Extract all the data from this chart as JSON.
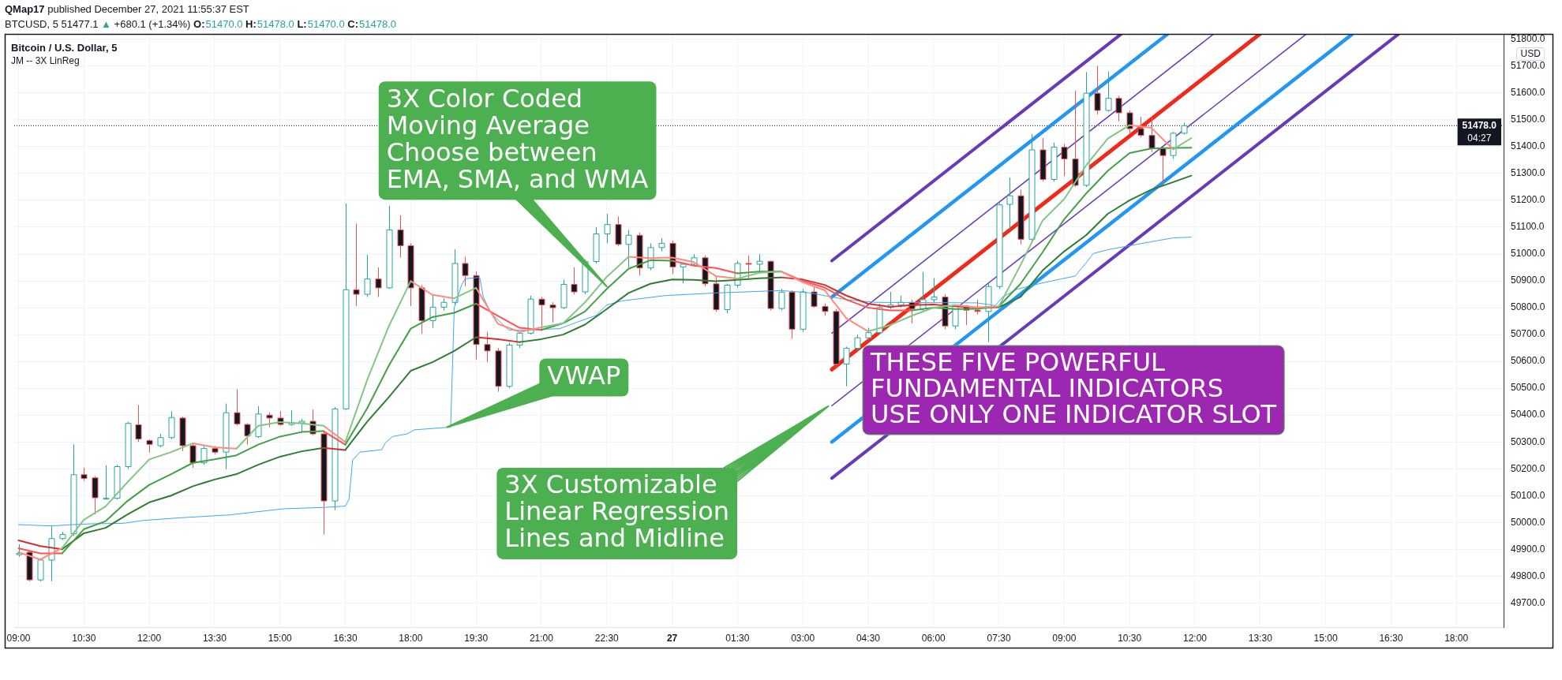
{
  "chart_data": {
    "type": "candlestick",
    "title": "Bitcoin / U.S. Dollar, 5",
    "subtitle": "JM -- 3X LinReg",
    "ylabel": "USD",
    "x": [
      "2021-12-26T09:00",
      "2021-12-26T09:15",
      "2021-12-26T09:30",
      "2021-12-26T09:45",
      "2021-12-26T10:00",
      "2021-12-26T10:15",
      "2021-12-26T10:30",
      "2021-12-26T10:45",
      "2021-12-26T11:00",
      "2021-12-26T11:15",
      "2021-12-26T11:30",
      "2021-12-26T11:45",
      "2021-12-26T12:00",
      "2021-12-26T12:15",
      "2021-12-26T12:30",
      "2021-12-26T12:45",
      "2021-12-26T13:00",
      "2021-12-26T13:15",
      "2021-12-26T13:30",
      "2021-12-26T13:45",
      "2021-12-26T14:00",
      "2021-12-26T14:15",
      "2021-12-26T14:30",
      "2021-12-26T14:45",
      "2021-12-26T15:00",
      "2021-12-26T15:15",
      "2021-12-26T15:30",
      "2021-12-26T15:45",
      "2021-12-26T16:00",
      "2021-12-26T16:15",
      "2021-12-26T16:30",
      "2021-12-26T16:45",
      "2021-12-26T17:00",
      "2021-12-26T17:15",
      "2021-12-26T17:30",
      "2021-12-26T17:45",
      "2021-12-26T18:00",
      "2021-12-26T18:15",
      "2021-12-26T18:30",
      "2021-12-26T18:45",
      "2021-12-26T19:00",
      "2021-12-26T19:15",
      "2021-12-26T19:30",
      "2021-12-26T19:45",
      "2021-12-26T20:00",
      "2021-12-26T20:15",
      "2021-12-26T20:30",
      "2021-12-26T20:45",
      "2021-12-26T21:00",
      "2021-12-26T21:15",
      "2021-12-26T21:30",
      "2021-12-26T21:45",
      "2021-12-26T22:00",
      "2021-12-26T22:15",
      "2021-12-26T22:30",
      "2021-12-26T22:45",
      "2021-12-26T23:00",
      "2021-12-26T23:15",
      "2021-12-26T23:30",
      "2021-12-26T23:45",
      "2021-12-27T00:00",
      "2021-12-27T00:15",
      "2021-12-27T00:30",
      "2021-12-27T00:45",
      "2021-12-27T01:00",
      "2021-12-27T01:15",
      "2021-12-27T01:30",
      "2021-12-27T01:45",
      "2021-12-27T02:00",
      "2021-12-27T02:15",
      "2021-12-27T02:30",
      "2021-12-27T02:45",
      "2021-12-27T03:00",
      "2021-12-27T03:15",
      "2021-12-27T03:30",
      "2021-12-27T03:45",
      "2021-12-27T04:00",
      "2021-12-27T04:15",
      "2021-12-27T04:30",
      "2021-12-27T04:45",
      "2021-12-27T05:00",
      "2021-12-27T05:15",
      "2021-12-27T05:30",
      "2021-12-27T05:45",
      "2021-12-27T06:00",
      "2021-12-27T06:15",
      "2021-12-27T06:30",
      "2021-12-27T06:45",
      "2021-12-27T07:00",
      "2021-12-27T07:15",
      "2021-12-27T07:30",
      "2021-12-27T07:45",
      "2021-12-27T08:00",
      "2021-12-27T08:15",
      "2021-12-27T08:30",
      "2021-12-27T08:45",
      "2021-12-27T09:00",
      "2021-12-27T09:15",
      "2021-12-27T09:30",
      "2021-12-27T09:45",
      "2021-12-27T10:00",
      "2021-12-27T10:15",
      "2021-12-27T10:30",
      "2021-12-27T10:45",
      "2021-12-27T11:00",
      "2021-12-27T11:15",
      "2021-12-27T11:30",
      "2021-12-27T11:45"
    ],
    "ohlc": [
      [
        49880,
        49919,
        49872,
        49885
      ],
      [
        49889,
        49895,
        49781,
        49786
      ],
      [
        49786,
        49865,
        49780,
        49860
      ],
      [
        49860,
        49989,
        49781,
        49940
      ],
      [
        49940,
        49965,
        49935,
        49955
      ],
      [
        49958,
        50291,
        49950,
        50178
      ],
      [
        50178,
        50203,
        50155,
        50164
      ],
      [
        50166,
        50172,
        50030,
        50092
      ],
      [
        50090,
        50213,
        50085,
        50090
      ],
      [
        50090,
        50215,
        50085,
        50208
      ],
      [
        50208,
        50375,
        50200,
        50369
      ],
      [
        50364,
        50438,
        50300,
        50311
      ],
      [
        50305,
        50310,
        50260,
        50291
      ],
      [
        50286,
        50330,
        50280,
        50316
      ],
      [
        50316,
        50414,
        50310,
        50391
      ],
      [
        50389,
        50395,
        50266,
        50286
      ],
      [
        50286,
        50295,
        50203,
        50222
      ],
      [
        50222,
        50290,
        50215,
        50276
      ],
      [
        50276,
        50285,
        50255,
        50262
      ],
      [
        50262,
        50443,
        50198,
        50409
      ],
      [
        50409,
        50497,
        50360,
        50367
      ],
      [
        50365,
        50370,
        50290,
        50322
      ],
      [
        50320,
        50433,
        50315,
        50404
      ],
      [
        50400,
        50410,
        50355,
        50389
      ],
      [
        50389,
        50415,
        50360,
        50365
      ],
      [
        50365,
        50418,
        50360,
        50371
      ],
      [
        50371,
        50385,
        50335,
        50377
      ],
      [
        50377,
        50421,
        50325,
        50330
      ],
      [
        50330,
        50335,
        49955,
        50080
      ],
      [
        50080,
        50430,
        50046,
        50423
      ],
      [
        50423,
        51188,
        50420,
        50867
      ],
      [
        50867,
        51114,
        50806,
        50850
      ],
      [
        50850,
        50997,
        50840,
        50907
      ],
      [
        50907,
        50950,
        50840,
        50874
      ],
      [
        50874,
        51180,
        50870,
        51090
      ],
      [
        51090,
        51144,
        50987,
        51031
      ],
      [
        51031,
        51040,
        50806,
        50874
      ],
      [
        50874,
        50885,
        50703,
        50752
      ],
      [
        50752,
        50850,
        50725,
        50802
      ],
      [
        50802,
        50835,
        50790,
        50820
      ],
      [
        50820,
        51018,
        50810,
        50965
      ],
      [
        50965,
        50990,
        50880,
        50920
      ],
      [
        50920,
        50935,
        50607,
        50663
      ],
      [
        50663,
        50710,
        50597,
        50639
      ],
      [
        50639,
        50650,
        50487,
        50507
      ],
      [
        50507,
        50670,
        50500,
        50661
      ],
      [
        50661,
        50712,
        50650,
        50705
      ],
      [
        50705,
        50845,
        50700,
        50832
      ],
      [
        50832,
        50840,
        50720,
        50810
      ],
      [
        50810,
        50820,
        50745,
        50800
      ],
      [
        50800,
        50905,
        50795,
        50887
      ],
      [
        50887,
        50950,
        50850,
        50859
      ],
      [
        50859,
        50980,
        50850,
        50972
      ],
      [
        50972,
        51100,
        50965,
        51075
      ],
      [
        51075,
        51150,
        51040,
        51110
      ],
      [
        51110,
        51140,
        51030,
        51036
      ],
      [
        51036,
        51090,
        50950,
        51070
      ],
      [
        51070,
        51080,
        50920,
        50948
      ],
      [
        50948,
        51040,
        50940,
        51024
      ],
      [
        51024,
        51060,
        51010,
        51040
      ],
      [
        51040,
        51050,
        50925,
        50952
      ],
      [
        50952,
        50965,
        50890,
        50962
      ],
      [
        50962,
        51000,
        50955,
        50986
      ],
      [
        50986,
        50995,
        50880,
        50889
      ],
      [
        50889,
        50915,
        50785,
        50793
      ],
      [
        50793,
        50890,
        50780,
        50884
      ],
      [
        50884,
        50975,
        50875,
        50965
      ],
      [
        50965,
        50995,
        50910,
        50962
      ],
      [
        50962,
        51000,
        50930,
        50973
      ],
      [
        50973,
        50975,
        50790,
        50797
      ],
      [
        50797,
        50870,
        50790,
        50858
      ],
      [
        50858,
        50865,
        50685,
        50720
      ],
      [
        50720,
        50870,
        50710,
        50859
      ],
      [
        50859,
        50880,
        50800,
        50805
      ],
      [
        50805,
        50815,
        50770,
        50786
      ],
      [
        50786,
        50795,
        50580,
        50590
      ],
      [
        50590,
        50655,
        50507,
        50649
      ],
      [
        50649,
        50700,
        50640,
        50688
      ],
      [
        50688,
        50725,
        50680,
        50707
      ],
      [
        50707,
        50815,
        50700,
        50801
      ],
      [
        50801,
        50859,
        50795,
        50810
      ],
      [
        50810,
        50845,
        50800,
        50820
      ],
      [
        50820,
        50830,
        50742,
        50796
      ],
      [
        50796,
        50933,
        50785,
        50830
      ],
      [
        50830,
        50910,
        50820,
        50840
      ],
      [
        50840,
        50850,
        50720,
        50732
      ],
      [
        50732,
        50806,
        50720,
        50806
      ],
      [
        50806,
        50810,
        50735,
        50791
      ],
      [
        50791,
        50830,
        50775,
        50786
      ],
      [
        50786,
        50890,
        50672,
        50879
      ],
      [
        50879,
        51190,
        50870,
        51183
      ],
      [
        51185,
        51285,
        51090,
        51217
      ],
      [
        51217,
        51240,
        51036,
        51055
      ],
      [
        51055,
        51447,
        51050,
        51388
      ],
      [
        51388,
        51432,
        51270,
        51278
      ],
      [
        51278,
        51415,
        51270,
        51398
      ],
      [
        51398,
        51410,
        51290,
        51354
      ],
      [
        51354,
        51609,
        51250,
        51256
      ],
      [
        51256,
        51678,
        51250,
        51599
      ],
      [
        51599,
        51701,
        51520,
        51535
      ],
      [
        51535,
        51680,
        51530,
        51580
      ],
      [
        51580,
        51590,
        51495,
        51526
      ],
      [
        51526,
        51535,
        51450,
        51467
      ],
      [
        51467,
        51511,
        51435,
        51442
      ],
      [
        51442,
        51512,
        51380,
        51393
      ],
      [
        51393,
        51400,
        51253,
        51367
      ],
      [
        51367,
        51455,
        51355,
        51450
      ],
      [
        51450,
        51490,
        51445,
        51478
      ]
    ],
    "colors": [
      "#26a69a",
      "#ef5350",
      "#26a69a",
      "#26a69a",
      "#26a69a",
      "#26a69a",
      "#ef5350",
      "#ef5350",
      "#26a69a",
      "#26a69a",
      "#26a69a",
      "#ef5350",
      "#ef5350",
      "#26a69a",
      "#26a69a",
      "#ef5350",
      "#ef5350",
      "#26a69a",
      "#ef5350",
      "#26a69a",
      "#ef5350",
      "#ef5350",
      "#26a69a",
      "#ef5350",
      "#ef5350",
      "#26a69a",
      "#26a69a",
      "#ef5350",
      "#ef5350",
      "#26a69a",
      "#26a69a",
      "#ef5350",
      "#26a69a",
      "#ef5350",
      "#26a69a",
      "#ef5350",
      "#ef5350",
      "#ef5350",
      "#26a69a",
      "#26a69a",
      "#26a69a",
      "#ef5350",
      "#ef5350",
      "#ef5350",
      "#ef5350",
      "#26a69a",
      "#26a69a",
      "#26a69a",
      "#ef5350",
      "#ef5350",
      "#26a69a",
      "#ef5350",
      "#26a69a",
      "#26a69a",
      "#26a69a",
      "#ef5350",
      "#26a69a",
      "#ef5350",
      "#26a69a",
      "#26a69a",
      "#ef5350",
      "#26a69a",
      "#26a69a",
      "#ef5350",
      "#ef5350",
      "#26a69a",
      "#26a69a",
      "#ef5350",
      "#26a69a",
      "#ef5350",
      "#26a69a",
      "#ef5350",
      "#26a69a",
      "#ef5350",
      "#ef5350",
      "#ef5350",
      "#26a69a",
      "#26a69a",
      "#26a69a",
      "#26a69a",
      "#26a69a",
      "#26a69a",
      "#ef5350",
      "#26a69a",
      "#26a69a",
      "#ef5350",
      "#26a69a",
      "#ef5350",
      "#ef5350",
      "#26a69a",
      "#26a69a",
      "#26a69a",
      "#ef5350",
      "#26a69a",
      "#ef5350",
      "#26a69a",
      "#ef5350",
      "#ef5350",
      "#26a69a",
      "#ef5350",
      "#26a69a",
      "#ef5350",
      "#ef5350",
      "#ef5350",
      "#ef5350",
      "#ef5350",
      "#26a69a",
      "#26a69a"
    ],
    "series": [
      {
        "type": "line",
        "color": "#81c784",
        "x": [
          "2021-12-26T10:00",
          "2021-12-26T10:30",
          "2021-12-26T11:00",
          "2021-12-26T11:30",
          "2021-12-26T12:00",
          "2021-12-26T12:30",
          "2021-12-26T13:00",
          "2021-12-26T13:30",
          "2021-12-26T14:00",
          "2021-12-26T14:30",
          "2021-12-26T15:00",
          "2021-12-26T15:30",
          "2021-12-26T16:00",
          "2021-12-26T16:15",
          "2021-12-26T16:30",
          "2021-12-26T17:00",
          "2021-12-26T17:30",
          "2021-12-26T18:00",
          "2021-12-26T18:30",
          "2021-12-26T19:00",
          "2021-12-26T19:30",
          "2021-12-26T20:00",
          "2021-12-26T21:00",
          "2021-12-26T21:30",
          "2021-12-26T22:00",
          "2021-12-26T22:30",
          "2021-12-26T23:00",
          "2021-12-27T00:00",
          "2021-12-27T01:30",
          "2021-12-27T02:00",
          "2021-12-27T02:30",
          "2021-12-27T03:30",
          "2021-12-27T04:30",
          "2021-12-27T05:00",
          "2021-12-27T05:30",
          "2021-12-27T06:00",
          "2021-12-27T06:30",
          "2021-12-27T07:00",
          "2021-12-27T07:30",
          "2021-12-27T08:00",
          "2021-12-27T08:30",
          "2021-12-27T09:00",
          "2021-12-27T09:30",
          "2021-12-27T10:00",
          "2021-12-27T10:30",
          "2021-12-27T11:00",
          "2021-12-27T11:30",
          "2021-12-27T11:55"
        ],
        "values": [
          49905,
          50010,
          50060,
          50150,
          50235,
          50262,
          50295,
          null,
          50275,
          50360,
          50374,
          50369,
          50360,
          null,
          50300,
          50530,
          50732,
          50899,
          null,
          50835,
          50874,
          null,
          50727,
          50742,
          50820,
          50915,
          50990,
          null,
          50908,
          50930,
          50935,
          null,
          50712,
          50735,
          50770,
          50800,
          50810,
          null,
          50805,
          50960,
          51124,
          51205,
          51330,
          51430,
          51480,
          null,
          51390,
          51432
        ]
      },
      {
        "type": "line",
        "color": "#ff8a80",
        "x": [
          "2021-12-26T09:00",
          "2021-12-26T09:30",
          "2021-12-26T10:00",
          "2021-12-26T11:30",
          "2021-12-26T13:00",
          "2021-12-26T13:30",
          "2021-12-26T14:00",
          "2021-12-26T15:00",
          "2021-12-26T16:00",
          "2021-12-26T16:30",
          "2021-12-26T17:00",
          "2021-12-26T18:00",
          "2021-12-26T18:30",
          "2021-12-26T19:00",
          "2021-12-26T19:15",
          "2021-12-26T19:30",
          "2021-12-26T20:00",
          "2021-12-26T20:30",
          "2021-12-26T21:00",
          "2021-12-26T22:00",
          "2021-12-26T23:00",
          "2021-12-26T23:30",
          "2021-12-27T00:00",
          "2021-12-27T00:30",
          "2021-12-27T01:00",
          "2021-12-27T01:30",
          "2021-12-27T02:00",
          "2021-12-27T02:30",
          "2021-12-27T03:00",
          "2021-12-27T03:30",
          "2021-12-27T04:00",
          "2021-12-27T04:30",
          "2021-12-27T05:30",
          "2021-12-27T06:30",
          "2021-12-27T07:00",
          "2021-12-27T07:30",
          "2021-12-27T09:00",
          "2021-12-27T10:30",
          "2021-12-27T11:00",
          "2021-12-27T11:30"
        ],
        "values": [
          49889,
          49862,
          49905,
          null,
          50295,
          50280,
          50275,
          null,
          50360,
          50300,
          null,
          50899,
          50848,
          50835,
          null,
          50874,
          50740,
          50710,
          50727,
          null,
          50990,
          50985,
          50987,
          50970,
          50918,
          50908,
          null,
          50935,
          50895,
          50865,
          50760,
          50712,
          null,
          50810,
          50801,
          50805,
          null,
          51480,
          51470,
          51390
        ]
      },
      {
        "type": "line",
        "color": "#43a047",
        "x": [
          "2021-12-26T10:00",
          "2021-12-26T10:30",
          "2021-12-26T11:00",
          "2021-12-26T11:30",
          "2021-12-26T12:00",
          "2021-12-26T12:30",
          "2021-12-26T13:00",
          "2021-12-26T13:30",
          "2021-12-26T14:00",
          "2021-12-26T14:30",
          "2021-12-26T15:00",
          "2021-12-26T15:30",
          "2021-12-26T16:00",
          "2021-12-26T16:15",
          "2021-12-26T16:30",
          "2021-12-26T17:00",
          "2021-12-26T17:30",
          "2021-12-26T18:00",
          "2021-12-26T18:30",
          "2021-12-26T19:00",
          "2021-12-26T19:30",
          "2021-12-26T20:00",
          "2021-12-26T21:00",
          "2021-12-26T21:30",
          "2021-12-26T22:00",
          "2021-12-26T22:30",
          "2021-12-26T23:00",
          "2021-12-26T23:30",
          "2021-12-27T00:00",
          "2021-12-27T00:30",
          "2021-12-27T01:30",
          "2021-12-27T02:00",
          "2021-12-27T02:30",
          "2021-12-27T03:30",
          "2021-12-27T05:30",
          "2021-12-27T06:00",
          "2021-12-27T06:30",
          "2021-12-27T07:00",
          "2021-12-27T07:30",
          "2021-12-27T08:00",
          "2021-12-27T08:30",
          "2021-12-27T09:00",
          "2021-12-27T09:30",
          "2021-12-27T10:00",
          "2021-12-27T10:30",
          "2021-12-27T11:00",
          "2021-12-27T11:30",
          "2021-12-27T11:55"
        ],
        "values": [
          49885,
          49975,
          50005,
          50080,
          50140,
          50180,
          50222,
          50235,
          50250,
          50290,
          50320,
          50337,
          50340,
          null,
          50290,
          50425,
          50585,
          50722,
          50765,
          50781,
          50815,
          null,
          50717,
          50742,
          50786,
          50870,
          50945,
          50977,
          50975,
          null,
          50928,
          50935,
          50935,
          null,
          50790,
          50800,
          50795,
          50796,
          50805,
          50890,
          51006,
          51130,
          51225,
          51310,
          51376,
          51393,
          51395,
          51396
        ]
      },
      {
        "type": "line",
        "color": "#ff5252",
        "x": [
          "2021-12-26T09:00",
          "2021-12-26T09:30",
          "2021-12-26T10:00",
          "2021-12-26T13:00",
          "2021-12-26T16:00",
          "2021-12-26T16:30",
          "2021-12-26T18:00",
          "2021-12-26T19:30",
          "2021-12-26T20:00",
          "2021-12-26T20:30",
          "2021-12-26T21:00",
          "2021-12-26T22:30",
          "2021-12-27T00:00",
          "2021-12-27T00:30",
          "2021-12-27T01:00",
          "2021-12-27T01:30",
          "2021-12-27T02:00",
          "2021-12-27T02:30",
          "2021-12-27T03:00",
          "2021-12-27T03:30",
          "2021-12-27T04:00",
          "2021-12-27T04:30",
          "2021-12-27T05:00",
          "2021-12-27T05:30"
        ],
        "values": [
          49904,
          49885,
          49885,
          null,
          50340,
          50290,
          null,
          50815,
          50770,
          50725,
          50717,
          null,
          50975,
          50957,
          50948,
          50928,
          null,
          50935,
          50900,
          50875,
          50830,
          50800,
          50790,
          50790
        ]
      },
      {
        "type": "line",
        "color": "#2e7d32",
        "x": [
          "2021-12-26T10:00",
          "2021-12-26T10:30",
          "2021-12-26T11:00",
          "2021-12-26T11:30",
          "2021-12-26T12:00",
          "2021-12-26T12:30",
          "2021-12-26T13:00",
          "2021-12-26T13:30",
          "2021-12-26T14:00",
          "2021-12-26T14:30",
          "2021-12-26T15:00",
          "2021-12-26T15:30",
          "2021-12-26T16:00",
          "2021-12-26T16:15",
          "2021-12-26T16:30",
          "2021-12-26T17:00",
          "2021-12-26T17:30",
          "2021-12-26T18:00",
          "2021-12-26T18:30",
          "2021-12-26T19:00",
          "2021-12-26T19:30",
          "2021-12-26T20:00",
          "2021-12-26T20:30",
          "2021-12-26T21:00",
          "2021-12-26T21:30",
          "2021-12-26T22:00",
          "2021-12-26T22:30",
          "2021-12-26T23:00",
          "2021-12-26T23:30",
          "2021-12-27T00:00",
          "2021-12-27T00:30",
          "2021-12-27T01:00",
          "2021-12-27T01:30",
          "2021-12-27T02:00",
          "2021-12-27T02:30",
          "2021-12-27T05:00",
          "2021-12-27T07:30",
          "2021-12-27T08:00",
          "2021-12-27T08:30",
          "2021-12-27T09:00",
          "2021-12-27T09:30",
          "2021-12-27T10:00",
          "2021-12-27T10:30",
          "2021-12-27T11:00",
          "2021-12-27T11:30",
          "2021-12-27T11:55"
        ],
        "values": [
          49900,
          49960,
          49980,
          50030,
          50075,
          50100,
          50135,
          50160,
          50180,
          50215,
          50245,
          50265,
          50278,
          null,
          50270,
          50375,
          50467,
          50565,
          50597,
          50639,
          50690,
          null,
          50672,
          50683,
          50700,
          50737,
          50795,
          50855,
          50889,
          50905,
          50904,
          50899,
          50904,
          50910,
          50913,
          null,
          50802,
          50840,
          50938,
          51010,
          51070,
          51150,
          51200,
          51240,
          51268,
          51292
        ]
      },
      {
        "type": "line",
        "color": "#d32f2f",
        "x": [
          "2021-12-26T09:00",
          "2021-12-26T09:30",
          "2021-12-26T10:00",
          "2021-12-26T13:00",
          "2021-12-26T16:00",
          "2021-12-26T16:30",
          "2021-12-26T18:00",
          "2021-12-26T19:30",
          "2021-12-26T20:00",
          "2021-12-26T20:30",
          "2021-12-26T23:00",
          "2021-12-27T02:30",
          "2021-12-27T03:00",
          "2021-12-27T03:30",
          "2021-12-27T04:00",
          "2021-12-27T04:30",
          "2021-12-27T05:00",
          "2021-12-27T05:30",
          "2021-12-27T06:00",
          "2021-12-27T06:30",
          "2021-12-27T07:00",
          "2021-12-27T07:30"
        ],
        "values": [
          49933,
          49912,
          49900,
          null,
          50278,
          50270,
          null,
          50690,
          50683,
          50672,
          null,
          50913,
          50905,
          50885,
          50845,
          50815,
          50803,
          50810,
          50812,
          50805,
          50800,
          50802
        ]
      },
      {
        "type": "line",
        "color": "#42a5f5",
        "x": [
          "2021-12-26T09:00",
          "2021-12-26T09:45",
          "2021-12-26T10:15",
          "2021-12-26T10:40",
          "2021-12-26T11:25",
          "2021-12-26T11:50",
          "2021-12-26T12:40",
          "2021-12-26T13:50",
          "2021-12-26T15:05",
          "2021-12-26T16:00",
          "2021-12-26T16:30",
          "2021-12-26T16:35",
          "2021-12-26T16:40",
          "2021-12-26T16:50",
          "2021-12-26T17:20",
          "2021-12-26T17:25",
          "2021-12-26T17:35",
          "2021-12-26T17:55",
          "2021-12-26T18:05",
          "2021-12-26T18:55",
          "2021-12-26T19:00",
          "2021-12-26T19:10",
          "2021-12-26T19:15",
          "2021-12-26T19:35",
          "2021-12-26T19:40",
          "2021-12-26T19:50",
          "2021-12-26T20:05",
          "2021-12-26T20:15",
          "2021-12-26T20:40",
          "2021-12-26T21:25",
          "2021-12-26T21:55",
          "2021-12-26T22:15",
          "2021-12-26T22:30",
          "2021-12-26T22:50",
          "2021-12-26T23:50",
          "2021-12-27T01:00",
          "2021-12-27T02:30",
          "2021-12-27T03:10",
          "2021-12-27T04:00",
          "2021-12-27T04:40",
          "2021-12-27T07:00",
          "2021-12-27T07:25",
          "2021-12-27T07:35",
          "2021-12-27T07:55",
          "2021-12-27T08:25",
          "2021-12-27T08:50",
          "2021-12-27T09:15",
          "2021-12-27T09:30",
          "2021-12-27T09:40",
          "2021-12-27T10:00",
          "2021-12-27T10:20",
          "2021-12-27T11:00",
          "2021-12-27T11:30",
          "2021-12-27T11:55"
        ],
        "values": [
          49992,
          49987,
          49992,
          49995,
          49997,
          50007,
          50017,
          50028,
          50051,
          50056,
          50061,
          50085,
          50232,
          50262,
          50271,
          50296,
          50320,
          50330,
          50345,
          50355,
          50800,
          50884,
          50908,
          50913,
          50840,
          50781,
          50742,
          50717,
          50717,
          50722,
          50752,
          50771,
          50810,
          50825,
          50845,
          50855,
          50864,
          50855,
          50830,
          50820,
          50818,
          50808,
          50840,
          50869,
          50889,
          50904,
          50918,
          50967,
          51002,
          51016,
          51026,
          51046,
          51060,
          51063
        ]
      },
      {
        "type": "line",
        "color": "#673ab7",
        "x": [
          "2021-12-27T03:40",
          "2021-12-27T10:18"
        ],
        "values": [
          50975,
          51819
        ]
      },
      {
        "type": "line",
        "color": "#2196f3",
        "x": [
          "2021-12-27T03:40",
          "2021-12-27T11:22"
        ],
        "values": [
          50840,
          51819
        ]
      },
      {
        "type": "line",
        "color": "#673ab7",
        "x": [
          "2021-12-27T03:40",
          "2021-12-27T12:25"
        ],
        "values": [
          50705,
          51818
        ]
      },
      {
        "type": "line",
        "color": "#f0291a",
        "x": [
          "2021-12-27T03:40",
          "2021-12-27T13:29"
        ],
        "values": [
          50570,
          51819
        ]
      },
      {
        "type": "line",
        "color": "#673ab7",
        "x": [
          "2021-12-27T03:40",
          "2021-12-27T14:33"
        ],
        "values": [
          50435,
          51819
        ]
      },
      {
        "type": "line",
        "color": "#2196f3",
        "x": [
          "2021-12-27T03:40",
          "2021-12-27T15:36"
        ],
        "values": [
          50300,
          51818
        ]
      },
      {
        "type": "line",
        "color": "#673ab7",
        "x": [
          "2021-12-27T03:40",
          "2021-12-27T16:40"
        ],
        "values": [
          50165,
          51819
        ]
      }
    ],
    "xlim": [
      "2021-12-26T08:54",
      "2021-12-27T19:05"
    ],
    "xticks": [
      {
        "value": "2021-12-26T09:00",
        "label": "09:00"
      },
      {
        "value": "2021-12-26T10:30",
        "label": "10:30"
      },
      {
        "value": "2021-12-26T12:00",
        "label": "12:00"
      },
      {
        "value": "2021-12-26T13:30",
        "label": "13:30"
      },
      {
        "value": "2021-12-26T15:00",
        "label": "15:00"
      },
      {
        "value": "2021-12-26T16:30",
        "label": "16:30"
      },
      {
        "value": "2021-12-26T18:00",
        "label": "18:00"
      },
      {
        "value": "2021-12-26T19:30",
        "label": "19:30"
      },
      {
        "value": "2021-12-26T21:00",
        "label": "21:00"
      },
      {
        "value": "2021-12-26T22:30",
        "label": "22:30"
      },
      {
        "value": "2021-12-27T00:00",
        "label": "27"
      },
      {
        "value": "2021-12-27T01:30",
        "label": "01:30"
      },
      {
        "value": "2021-12-27T03:00",
        "label": "03:00"
      },
      {
        "value": "2021-12-27T04:30",
        "label": "04:30"
      },
      {
        "value": "2021-12-27T06:00",
        "label": "06:00"
      },
      {
        "value": "2021-12-27T07:30",
        "label": "07:30"
      },
      {
        "value": "2021-12-27T09:00",
        "label": "09:00"
      },
      {
        "value": "2021-12-27T10:30",
        "label": "10:30"
      },
      {
        "value": "2021-12-27T12:00",
        "label": "12:00"
      },
      {
        "value": "2021-12-27T13:30",
        "label": "13:30"
      },
      {
        "value": "2021-12-27T15:00",
        "label": "15:00"
      },
      {
        "value": "2021-12-27T16:30",
        "label": "16:30"
      },
      {
        "value": "2021-12-27T18:00",
        "label": "18:00"
      }
    ],
    "ylim": [
      49610,
      51820
    ],
    "yticks": [
      {
        "value": 49700,
        "label": "49700.0"
      },
      {
        "value": 49800,
        "label": "49800.0"
      },
      {
        "value": 49900,
        "label": "49900.0"
      },
      {
        "value": 50000,
        "label": "50000.0"
      },
      {
        "value": 50100,
        "label": "50100.0"
      },
      {
        "value": 50200,
        "label": "50200.0"
      },
      {
        "value": 50300,
        "label": "50300.0"
      },
      {
        "value": 50400,
        "label": "50400.0"
      },
      {
        "value": 50500,
        "label": "50500.0"
      },
      {
        "value": 50600,
        "label": "50600.0"
      },
      {
        "value": 50700,
        "label": "50700.0"
      },
      {
        "value": 50800,
        "label": "50800.0"
      },
      {
        "value": 50900,
        "label": "50900.0"
      },
      {
        "value": 51000,
        "label": "51000.0"
      },
      {
        "value": 51100,
        "label": "51100.0"
      },
      {
        "value": 51200,
        "label": "51200.0"
      },
      {
        "value": 51300,
        "label": "51300.0"
      },
      {
        "value": 51400,
        "label": "51400.0"
      },
      {
        "value": 51500,
        "label": "51500.0"
      },
      {
        "value": 51600,
        "label": "51600.0"
      },
      {
        "value": 51700,
        "label": "51700.0"
      },
      {
        "value": 51800,
        "label": "51800.0"
      }
    ],
    "grid": true,
    "ref_lines": [
      {
        "axis": "y",
        "value": 51478,
        "label": "51478.0",
        "line_style": "dotted",
        "color": "#131722"
      }
    ],
    "annotations": [
      "QMap17 published December 27, 2021 11:55:37 EST",
      "BTCUSD, 5 51477.1 ▲ +680.1 (+1.34%) O:51470.0 H:51478.0 L:51470.0 C:51478.0",
      {
        "text": "3X Color Coded\nMoving Average\nChoose between\nEMA, SMA, and WMA",
        "x": "2021-12-26T22:30",
        "y": 50879
      },
      {
        "text": "VWAP",
        "x": "2021-12-26T18:50",
        "y": 50355
      },
      {
        "text": "3X Customizable\nLinear Regression\nLines and Midline",
        "x": "2021-12-27T03:35",
        "y": 50433
      },
      "THESE FIVE POWERFUL\nFUNDAMENTAL INDICATORS\nUSE ONLY ONE INDICATOR SLOT",
      "04:27"
    ]
  }
}
